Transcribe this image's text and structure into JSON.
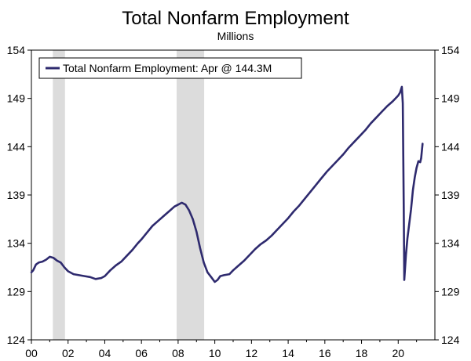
{
  "title": "Total Nonfarm Employment",
  "subtitle": "Millions",
  "colors": {
    "line": "#2e2a6e",
    "recession": "#dcdcdc",
    "axis": "#000000"
  },
  "chart_data": {
    "type": "line",
    "title": "Total Nonfarm Employment",
    "subtitle": "Millions",
    "xlabel": "",
    "ylabel": "",
    "xlim": [
      2000,
      2022
    ],
    "ylim": [
      124,
      154
    ],
    "yticks": [
      124,
      129,
      134,
      139,
      144,
      149,
      154
    ],
    "xticks": [
      2000,
      2002,
      2004,
      2006,
      2008,
      2010,
      2012,
      2014,
      2016,
      2018,
      2020
    ],
    "xtick_labels": [
      "00",
      "02",
      "04",
      "06",
      "08",
      "10",
      "12",
      "14",
      "16",
      "18",
      "20"
    ],
    "ytick_labels_left": [
      "124",
      "129",
      "134",
      "139",
      "144",
      "149",
      "154"
    ],
    "ytick_labels_right": [
      "124",
      "129",
      "134",
      "139",
      "144",
      "149",
      "154"
    ],
    "grid": false,
    "legend_position": "top-left",
    "recessions": [
      [
        2001.17,
        2001.83
      ],
      [
        2007.92,
        2009.42
      ]
    ],
    "series": [
      {
        "name": "Total Nonfarm Employment: Apr @ 144.3M",
        "points": [
          [
            2000.0,
            131.0
          ],
          [
            2000.1,
            131.2
          ],
          [
            2000.25,
            131.8
          ],
          [
            2000.4,
            132.0
          ],
          [
            2000.6,
            132.1
          ],
          [
            2000.8,
            132.3
          ],
          [
            2001.0,
            132.6
          ],
          [
            2001.2,
            132.5
          ],
          [
            2001.4,
            132.2
          ],
          [
            2001.6,
            132.0
          ],
          [
            2001.8,
            131.5
          ],
          [
            2002.0,
            131.1
          ],
          [
            2002.3,
            130.8
          ],
          [
            2002.6,
            130.7
          ],
          [
            2002.9,
            130.6
          ],
          [
            2003.2,
            130.5
          ],
          [
            2003.5,
            130.3
          ],
          [
            2003.8,
            130.4
          ],
          [
            2004.0,
            130.6
          ],
          [
            2004.3,
            131.2
          ],
          [
            2004.6,
            131.7
          ],
          [
            2004.9,
            132.1
          ],
          [
            2005.2,
            132.7
          ],
          [
            2005.5,
            133.3
          ],
          [
            2005.8,
            134.0
          ],
          [
            2006.0,
            134.4
          ],
          [
            2006.3,
            135.1
          ],
          [
            2006.6,
            135.8
          ],
          [
            2006.9,
            136.3
          ],
          [
            2007.2,
            136.8
          ],
          [
            2007.5,
            137.3
          ],
          [
            2007.8,
            137.8
          ],
          [
            2008.0,
            138.0
          ],
          [
            2008.2,
            138.2
          ],
          [
            2008.4,
            138.0
          ],
          [
            2008.6,
            137.4
          ],
          [
            2008.8,
            136.5
          ],
          [
            2009.0,
            135.2
          ],
          [
            2009.2,
            133.5
          ],
          [
            2009.4,
            132.0
          ],
          [
            2009.6,
            131.0
          ],
          [
            2009.8,
            130.5
          ],
          [
            2010.0,
            130.0
          ],
          [
            2010.15,
            130.2
          ],
          [
            2010.3,
            130.6
          ],
          [
            2010.5,
            130.7
          ],
          [
            2010.8,
            130.8
          ],
          [
            2011.0,
            131.2
          ],
          [
            2011.3,
            131.7
          ],
          [
            2011.6,
            132.2
          ],
          [
            2011.9,
            132.8
          ],
          [
            2012.2,
            133.4
          ],
          [
            2012.5,
            133.9
          ],
          [
            2012.8,
            134.3
          ],
          [
            2013.1,
            134.8
          ],
          [
            2013.4,
            135.4
          ],
          [
            2013.7,
            136.0
          ],
          [
            2014.0,
            136.6
          ],
          [
            2014.3,
            137.3
          ],
          [
            2014.6,
            137.9
          ],
          [
            2014.9,
            138.6
          ],
          [
            2015.2,
            139.3
          ],
          [
            2015.5,
            140.0
          ],
          [
            2015.8,
            140.7
          ],
          [
            2016.1,
            141.4
          ],
          [
            2016.4,
            142.0
          ],
          [
            2016.7,
            142.6
          ],
          [
            2017.0,
            143.2
          ],
          [
            2017.3,
            143.9
          ],
          [
            2017.6,
            144.5
          ],
          [
            2017.9,
            145.1
          ],
          [
            2018.2,
            145.7
          ],
          [
            2018.5,
            146.4
          ],
          [
            2018.8,
            147.0
          ],
          [
            2019.1,
            147.6
          ],
          [
            2019.4,
            148.2
          ],
          [
            2019.7,
            148.7
          ],
          [
            2020.0,
            149.3
          ],
          [
            2020.1,
            149.6
          ],
          [
            2020.2,
            150.2
          ],
          [
            2020.25,
            148.5
          ],
          [
            2020.3,
            138.0
          ],
          [
            2020.33,
            130.2
          ],
          [
            2020.42,
            132.8
          ],
          [
            2020.5,
            134.5
          ],
          [
            2020.6,
            136.0
          ],
          [
            2020.7,
            137.5
          ],
          [
            2020.8,
            139.5
          ],
          [
            2020.9,
            140.8
          ],
          [
            2021.0,
            141.8
          ],
          [
            2021.1,
            142.5
          ],
          [
            2021.2,
            142.4
          ],
          [
            2021.25,
            142.8
          ],
          [
            2021.33,
            144.3
          ]
        ]
      }
    ]
  }
}
